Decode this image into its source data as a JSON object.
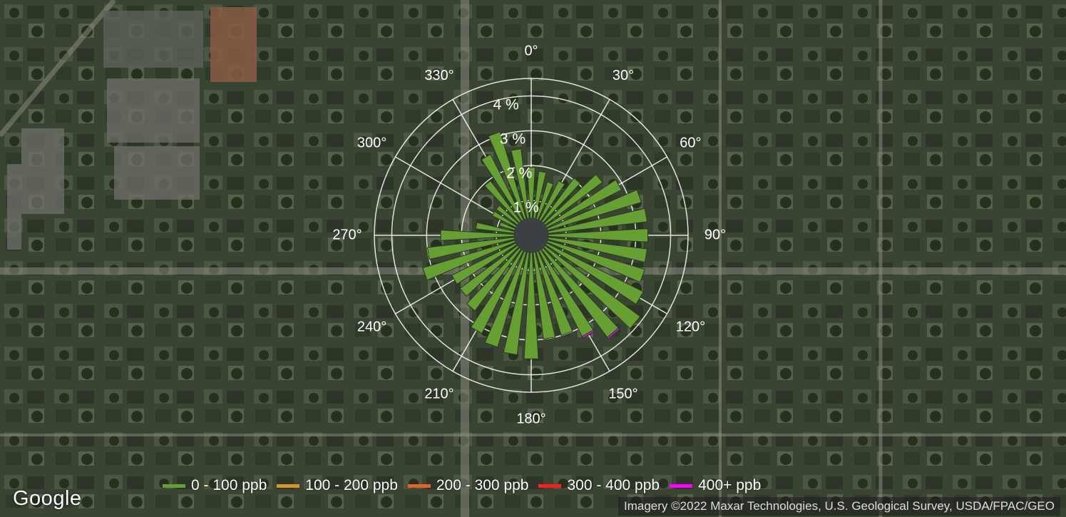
{
  "map": {
    "logo_text": "Google",
    "attribution": "Imagery ©2022 Maxar Technologies, U.S. Geological Survey, USDA/FPAC/GEO"
  },
  "chart_data": {
    "type": "polar-bar",
    "title": "",
    "direction_labels": [
      "0°",
      "30°",
      "60°",
      "90°",
      "120°",
      "150°",
      "180°",
      "210°",
      "240°",
      "270°",
      "300°",
      "330°"
    ],
    "ring_labels": [
      "1 %",
      "2 %",
      "3 %",
      "4 %"
    ],
    "rmax": 4.5,
    "bin_width_deg": 10,
    "directions": [
      0,
      10,
      20,
      30,
      40,
      50,
      60,
      70,
      80,
      90,
      100,
      110,
      120,
      130,
      140,
      150,
      160,
      170,
      180,
      190,
      200,
      210,
      220,
      230,
      240,
      250,
      260,
      270,
      280,
      290,
      300,
      310,
      320,
      330,
      340,
      350
    ],
    "series": [
      {
        "name": "0 - 100 ppb",
        "color": "#66a032",
        "values": [
          1.95,
          1.85,
          1.6,
          1.75,
          2.05,
          2.55,
          2.9,
          3.3,
          3.35,
          3.35,
          3.35,
          3.4,
          3.6,
          3.9,
          3.65,
          3.25,
          3.0,
          3.0,
          3.55,
          3.45,
          3.35,
          3.15,
          2.7,
          2.55,
          2.55,
          3.25,
          3.0,
          2.6,
          1.6,
          0.95,
          1.25,
          1.25,
          1.95,
          2.6,
          3.1,
          2.5
        ]
      },
      {
        "name": "100 - 200 ppb",
        "color": "#d4962a",
        "values": [
          0,
          0,
          0,
          0,
          0,
          0,
          0,
          0,
          0,
          0,
          0,
          0,
          0,
          0,
          0,
          0,
          0,
          0,
          0,
          0,
          0,
          0,
          0,
          0,
          0,
          0,
          0,
          0,
          0,
          0,
          0,
          0,
          0,
          0,
          0,
          0
        ]
      },
      {
        "name": "200 - 300 ppb",
        "color": "#e06428",
        "values": [
          0,
          0,
          0,
          0,
          0,
          0,
          0,
          0,
          0,
          0,
          0,
          0,
          0,
          0,
          0,
          0,
          0,
          0,
          0,
          0,
          0,
          0,
          0,
          0,
          0,
          0,
          0,
          0,
          0,
          0,
          0,
          0,
          0,
          0,
          0,
          0
        ]
      },
      {
        "name": "300 - 400 ppb",
        "color": "#ff1e1e",
        "values": [
          0,
          0,
          0,
          0,
          0,
          0,
          0,
          0,
          0,
          0,
          0,
          0,
          0,
          0,
          0,
          0,
          0,
          0,
          0,
          0,
          0,
          0,
          0,
          0,
          0,
          0,
          0,
          0,
          0,
          0,
          0,
          0,
          0,
          0,
          0,
          0
        ]
      },
      {
        "name": "400+ ppb",
        "color": "#ff00ff",
        "values": [
          0,
          0,
          0,
          0,
          0,
          0,
          0,
          0,
          0,
          0,
          0,
          0,
          0,
          0,
          0.05,
          0.05,
          0,
          0,
          0,
          0,
          0,
          0,
          0,
          0,
          0,
          0,
          0,
          0,
          0,
          0,
          0,
          0,
          0,
          0,
          0,
          0
        ]
      }
    ],
    "legend_position": "bottom",
    "grid": true
  }
}
